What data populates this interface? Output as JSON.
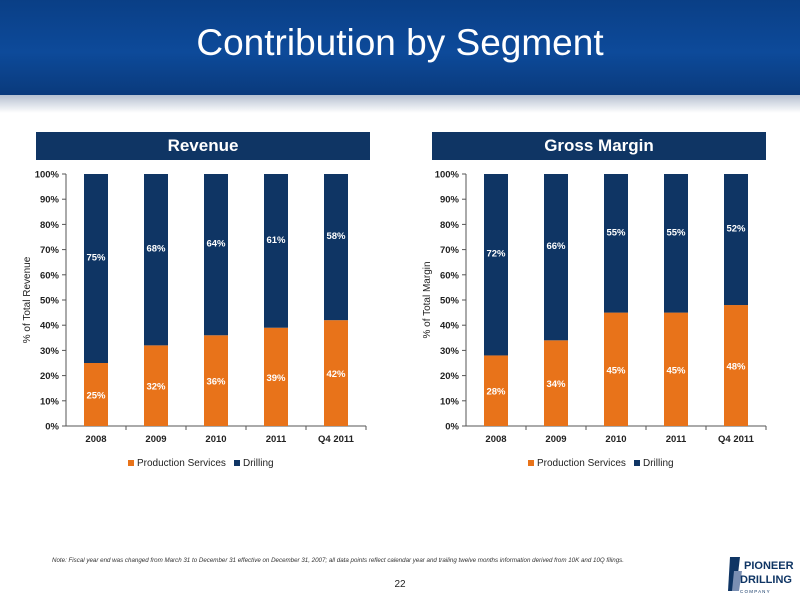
{
  "header": {
    "title": "Contribution by Segment"
  },
  "colors": {
    "production": "#e8731a",
    "drilling": "#0f3564",
    "header": "#0d4a9a"
  },
  "chart_data": [
    {
      "type": "bar",
      "stacked": true,
      "title": "Revenue",
      "ylabel": "% of Total Revenue",
      "categories": [
        "2008",
        "2009",
        "2010",
        "2011",
        "Q4 2011"
      ],
      "ylim": [
        0,
        100
      ],
      "yticks": [
        "0%",
        "10%",
        "20%",
        "30%",
        "40%",
        "50%",
        "60%",
        "70%",
        "80%",
        "90%",
        "100%"
      ],
      "series": [
        {
          "name": "Production Services",
          "values": [
            25,
            32,
            36,
            39,
            42
          ],
          "labels": [
            "25%",
            "32%",
            "36%",
            "39%",
            "42%"
          ]
        },
        {
          "name": "Drilling",
          "values": [
            75,
            68,
            64,
            61,
            58
          ],
          "labels": [
            "75%",
            "68%",
            "64%",
            "61%",
            "58%"
          ]
        }
      ],
      "legend": "bottom"
    },
    {
      "type": "bar",
      "stacked": true,
      "title": "Gross Margin",
      "ylabel": "% of Total Margin",
      "categories": [
        "2008",
        "2009",
        "2010",
        "2011",
        "Q4 2011"
      ],
      "ylim": [
        0,
        100
      ],
      "yticks": [
        "0%",
        "10%",
        "20%",
        "30%",
        "40%",
        "50%",
        "60%",
        "70%",
        "80%",
        "90%",
        "100%"
      ],
      "series": [
        {
          "name": "Production Services",
          "values": [
            28,
            34,
            45,
            45,
            48
          ],
          "labels": [
            "28%",
            "34%",
            "45%",
            "45%",
            "48%"
          ]
        },
        {
          "name": "Drilling",
          "values": [
            72,
            66,
            55,
            55,
            52
          ],
          "labels": [
            "72%",
            "66%",
            "55%",
            "55%",
            "52%"
          ]
        }
      ],
      "legend": "bottom"
    }
  ],
  "footer": {
    "note": "Note: Fiscal year end was changed from March 31 to December 31 effective on December 31, 2007; all data points reflect calendar year and trailing twelve months information derived from 10K and 10Q filings.",
    "page_number": "22",
    "logo_line1": "PIONEER",
    "logo_line2": "DRILLING",
    "logo_line3": "C O M P A N Y"
  }
}
